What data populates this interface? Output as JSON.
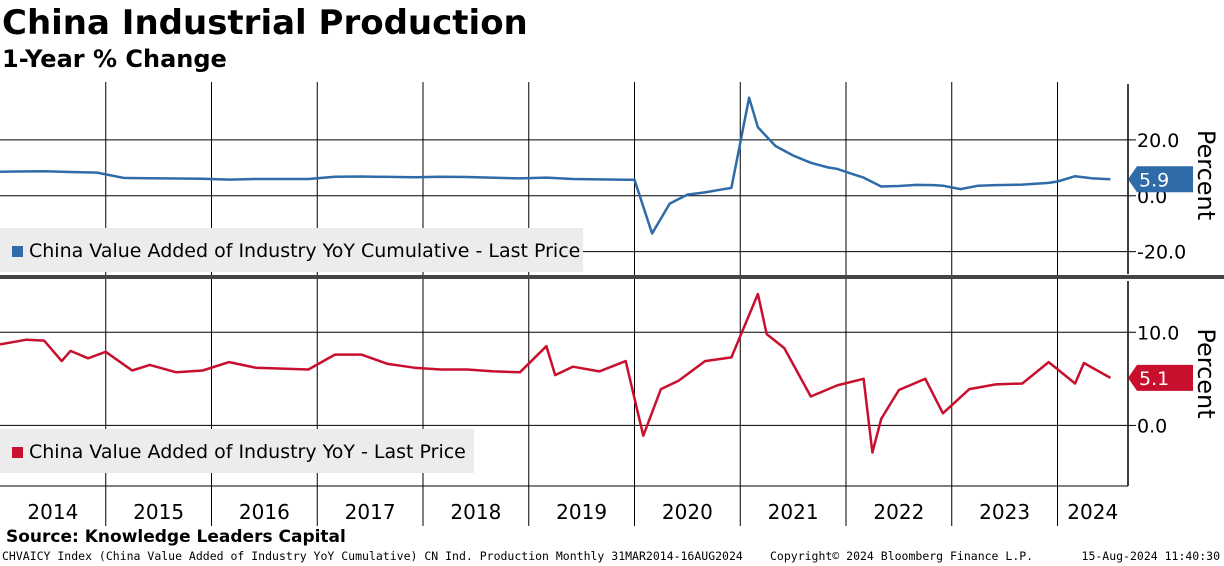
{
  "header": {
    "title": "China Industrial Production",
    "subtitle": "1-Year % Change"
  },
  "chart_data": [
    {
      "type": "line",
      "panel": "top",
      "series": [
        {
          "name": "China Value Added of Industry YoY Cumulative - Last Price",
          "color": "#2e6ba8",
          "x": [
            "2014-01",
            "2014-03",
            "2014-06",
            "2014-09",
            "2014-12",
            "2015-03",
            "2015-06",
            "2015-12",
            "2016-03",
            "2016-06",
            "2016-12",
            "2017-03",
            "2017-06",
            "2017-12",
            "2018-03",
            "2018-06",
            "2018-12",
            "2019-03",
            "2019-06",
            "2019-12",
            "2020-01",
            "2020-03",
            "2020-05",
            "2020-07",
            "2020-09",
            "2020-11",
            "2020-12",
            "2021-02",
            "2021-03",
            "2021-05",
            "2021-07",
            "2021-09",
            "2021-11",
            "2021-12",
            "2022-02",
            "2022-03",
            "2022-05",
            "2022-07",
            "2022-09",
            "2022-11",
            "2022-12",
            "2023-02",
            "2023-04",
            "2023-06",
            "2023-09",
            "2023-12",
            "2024-01",
            "2024-03",
            "2024-05",
            "2024-07"
          ],
          "values": [
            8.6,
            8.7,
            8.8,
            8.5,
            8.3,
            6.4,
            6.3,
            6.1,
            5.8,
            6.0,
            6.0,
            6.8,
            6.9,
            6.6,
            6.8,
            6.7,
            6.2,
            6.5,
            6.0,
            5.7,
            5.7,
            -13.5,
            -2.8,
            0.4,
            1.2,
            2.3,
            2.8,
            35.1,
            24.5,
            17.8,
            14.4,
            11.8,
            10.1,
            9.6,
            7.5,
            6.5,
            3.3,
            3.5,
            3.9,
            3.8,
            3.6,
            2.4,
            3.6,
            3.8,
            4.0,
            4.6,
            5.1,
            7.0,
            6.2,
            5.9
          ]
        }
      ],
      "yticks": [
        20.0,
        0.0,
        -20.0
      ],
      "ylim": [
        -28,
        40
      ],
      "ylabel": "Percent",
      "last_value": "5.9",
      "legend_position": "bottom-left"
    },
    {
      "type": "line",
      "panel": "bottom",
      "series": [
        {
          "name": "China Value Added of Industry YoY - Last Price",
          "color": "#c8102e",
          "x": [
            "2014-01",
            "2014-04",
            "2014-06",
            "2014-08",
            "2014-09",
            "2014-11",
            "2015-01",
            "2015-04",
            "2015-06",
            "2015-09",
            "2015-12",
            "2016-03",
            "2016-06",
            "2016-09",
            "2016-12",
            "2017-03",
            "2017-06",
            "2017-09",
            "2017-12",
            "2018-03",
            "2018-06",
            "2018-09",
            "2018-12",
            "2019-03",
            "2019-04",
            "2019-06",
            "2019-09",
            "2019-12",
            "2020-02",
            "2020-04",
            "2020-06",
            "2020-09",
            "2020-12",
            "2021-03",
            "2021-04",
            "2021-06",
            "2021-09",
            "2021-12",
            "2022-03",
            "2022-04",
            "2022-05",
            "2022-07",
            "2022-10",
            "2022-12",
            "2023-03",
            "2023-06",
            "2023-09",
            "2023-12",
            "2024-03",
            "2024-04",
            "2024-07"
          ],
          "values": [
            8.7,
            9.2,
            9.1,
            6.9,
            8.0,
            7.2,
            7.9,
            5.9,
            6.5,
            5.7,
            5.9,
            6.8,
            6.2,
            6.1,
            6.0,
            7.6,
            7.6,
            6.6,
            6.2,
            6.0,
            6.0,
            5.8,
            5.7,
            8.5,
            5.4,
            6.3,
            5.8,
            6.9,
            -1.1,
            3.9,
            4.8,
            6.9,
            7.3,
            14.1,
            9.8,
            8.3,
            3.1,
            4.3,
            5.0,
            -2.9,
            0.7,
            3.8,
            5.0,
            1.3,
            3.9,
            4.4,
            4.5,
            6.8,
            4.5,
            6.7,
            5.1
          ]
        }
      ],
      "yticks": [
        10.0,
        0.0
      ],
      "ylim": [
        -6.5,
        15.5
      ],
      "ylabel": "Percent",
      "last_value": "5.1",
      "legend_position": "bottom-left"
    }
  ],
  "x_axis": {
    "labels": [
      "2014",
      "2015",
      "2016",
      "2017",
      "2018",
      "2019",
      "2020",
      "2021",
      "2022",
      "2023",
      "2024"
    ]
  },
  "source": "Source: Knowledge Leaders Capital",
  "footer": {
    "left": "CHVAICY Index (China Value Added of Industry YoY Cumulative) CN Ind. Production  Monthly 31MAR2014-16AUG2024",
    "center": "Copyright© 2024 Bloomberg Finance L.P.",
    "right": "15-Aug-2024 11:40:30"
  }
}
